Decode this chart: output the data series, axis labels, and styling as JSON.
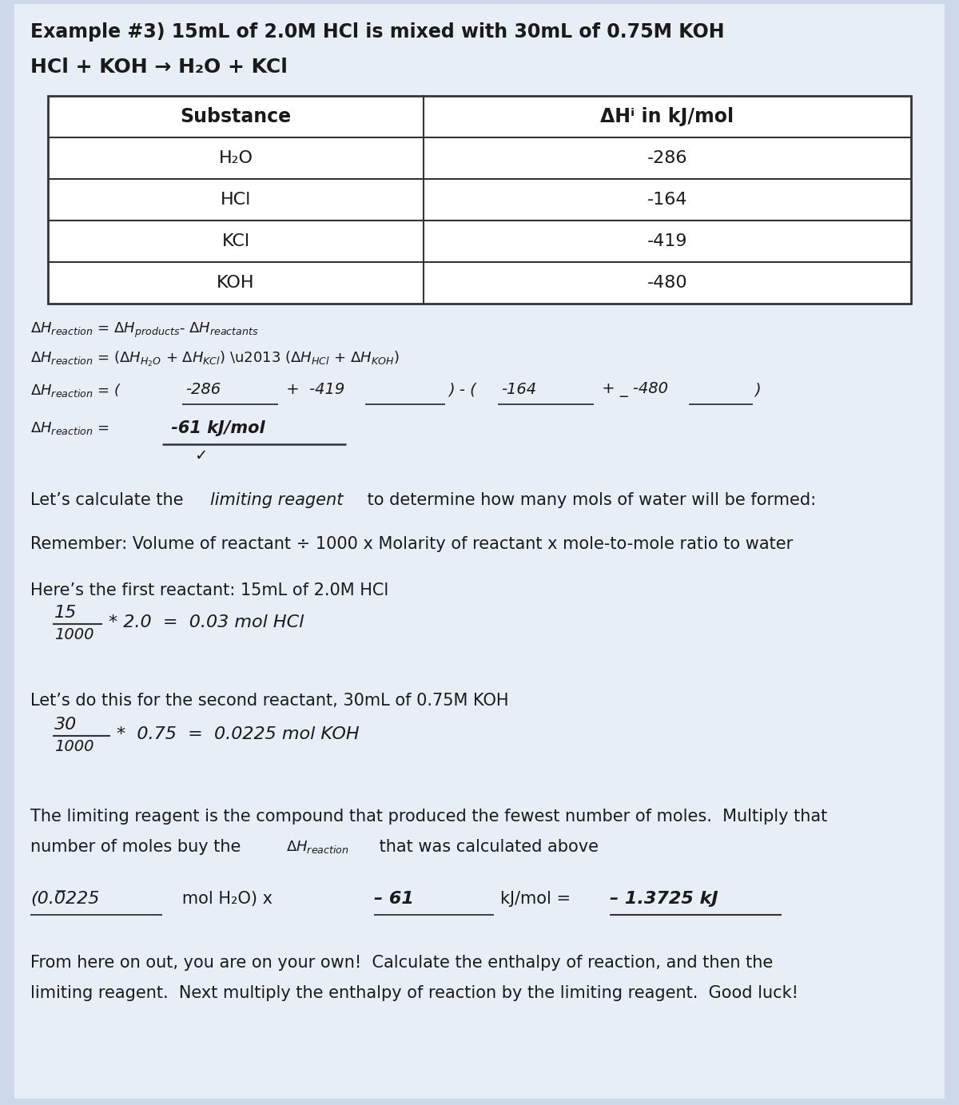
{
  "bg_color": "#cdd8e8",
  "paper_color": "#e8eef5",
  "title": "Example #3) 15mL of 2.0M HCl is mixed with 30mL of 0.75M KOH",
  "reaction": "HCl + KOH → H₂O + KCl",
  "tbl_sub_header": "Substance",
  "tbl_dh_header": "ΔHⁱ in kJ/mol",
  "tbl_substances": [
    "H₂O",
    "HCl",
    "KCl",
    "KOH"
  ],
  "tbl_values": [
    "-286",
    "-164",
    "-419",
    "-480"
  ],
  "eq1_text": "ΔHᴂₑₐᴄᵀᵉⁿ = ΔHₚᵣₒᵈᵘᵉᵗₛ- ΔHᵣₑₐᴄᵀₐⁿᵀₛ",
  "eq2_text": "ΔHᴂₑₐᴄᵀᵉⁿ = (ΔHʜ₂O + ΔHᴷCl) – (ΔHʜCl + ΔHᴷOH)",
  "eq3_prefix": "ΔHᴂₑₐᴄᵀᵉⁿ = (",
  "eq3_v1": "-286",
  "eq3_op1": " +  -419",
  "eq3_mid": ") - (",
  "eq3_v2": "-164",
  "eq3_op2": " + _ -480",
  "eq3_suffix": ")",
  "eq4_prefix": "ΔHᴂₑₐᴄᵀᵉⁿ = ",
  "eq4_val": " -61 kJ/mol",
  "lets_calc_a": "Let’s calculate the ",
  "lets_calc_b": "limiting reagent",
  "lets_calc_c": " to determine how many mols of water will be formed:",
  "remember": "Remember: Volume of reactant ÷ 1000 x Molarity of reactant x mole-to-mole ratio to water",
  "heres_first": "Here’s the first reactant: 15mL of 2.0M HCl",
  "hcl_num": "15",
  "hcl_denom": "1000",
  "hcl_eq": "* 2.0  =  0.03 mol HCl",
  "lets_do": "Let’s do this for the second reactant, 30mL of 0.75M KOH",
  "koh_num": "30",
  "koh_denom": "1000",
  "koh_eq": "*  0.75  =  0.0225 mol KOH",
  "limit_p1": "The limiting reagent is the compound that produced the fewest number of moles.  Multiply that",
  "limit_p2a": "number of moles buy the ΔH",
  "limit_p2b": "reaction",
  "limit_p2c": " that was calculated above",
  "final_a": "(0.0",
  "final_a2": "225",
  "final_b": "   mol H₂O) x ",
  "final_c": "– 61",
  "final_d": "           kJ/mol = ",
  "final_e": "– 1.3725 kJ",
  "footer1": "From here on out, you are on your own!  Calculate the enthalpy of reaction, and then the",
  "footer2": "limiting reagent.  Next multiply the enthalpy of reaction by the limiting reagent.  Good luck!"
}
